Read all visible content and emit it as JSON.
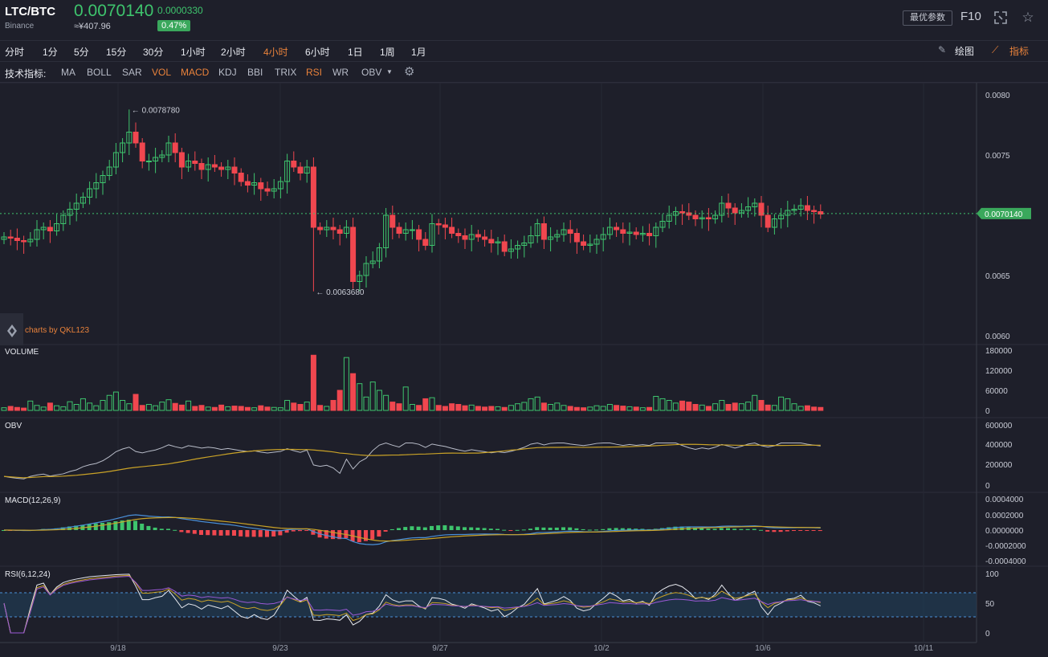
{
  "header": {
    "pair": "LTC/BTC",
    "exchange": "Binance",
    "price": "0.0070140",
    "cny_price": "≈¥407.96",
    "change": "0.0000330",
    "change_pct": "0.47%",
    "settings_label": "最优参数",
    "f10_label": "F10",
    "expand_icon": "expand-icon",
    "star_icon": "star-icon"
  },
  "timeframes": [
    "分时",
    "1分",
    "5分",
    "15分",
    "30分",
    "1小时",
    "2小时",
    "4小时",
    "6小时",
    "1日",
    "1周",
    "1月"
  ],
  "active_timeframe": "4小时",
  "tools": {
    "draw_label": "绘图",
    "indicator_label": "指标"
  },
  "indicators": {
    "label": "技术指标:",
    "items": [
      "MA",
      "BOLL",
      "SAR",
      "VOL",
      "MACD",
      "KDJ",
      "BBI",
      "TRIX",
      "RSI",
      "WR",
      "OBV"
    ],
    "active": [
      "VOL",
      "MACD",
      "RSI"
    ],
    "dropdown_arrow": "▼"
  },
  "watermark": "charts by QKL123",
  "panels": {
    "volume": "VOLUME",
    "obv": "OBV",
    "macd": "MACD(12,26,9)",
    "rsi": "RSI(6,12,24)"
  },
  "colors": {
    "up": "#3ec46d",
    "down": "#f0474f",
    "accent": "#e9823b",
    "bg": "#1e1f2a"
  },
  "chart_data": {
    "type": "candlestick",
    "interval": "4小时",
    "x_ticks": [
      "9/18",
      "9/23",
      "9/27",
      "10/2",
      "10/6",
      "10/11"
    ],
    "price_axis": [
      "0.0080",
      "0.0075",
      "0.0065",
      "0.0060"
    ],
    "ylim": [
      0.006,
      0.0081
    ],
    "last_price_label": "0.0070140",
    "high_label": "0.0078780",
    "low_label": "0.0063680",
    "volume_axis": [
      "180000",
      "120000",
      "60000",
      "0"
    ],
    "obv_axis": [
      "600000",
      "400000",
      "200000",
      "0"
    ],
    "macd_axis": [
      "0.0004000",
      "0.0002000",
      "0.0000000",
      "-0.0002000",
      "-0.0004000"
    ],
    "rsi_axis": [
      "100",
      "50",
      "0"
    ],
    "close": [
      0.00682,
      0.00681,
      0.00679,
      0.00678,
      0.0068,
      0.00688,
      0.0069,
      0.00687,
      0.00693,
      0.007,
      0.00705,
      0.0071,
      0.00715,
      0.00722,
      0.00727,
      0.00733,
      0.0074,
      0.00752,
      0.0076,
      0.00769,
      0.0076,
      0.00745,
      0.00745,
      0.00748,
      0.0075,
      0.0076,
      0.00752,
      0.0074,
      0.00745,
      0.00743,
      0.00738,
      0.00742,
      0.0074,
      0.00738,
      0.0074,
      0.00735,
      0.00728,
      0.00725,
      0.00727,
      0.00722,
      0.0072,
      0.00722,
      0.00728,
      0.00745,
      0.0074,
      0.00735,
      0.0074,
      0.0069,
      0.00688,
      0.0069,
      0.00688,
      0.00685,
      0.0069,
      0.00645,
      0.0065,
      0.0066,
      0.00662,
      0.00673,
      0.007,
      0.0069,
      0.00685,
      0.00688,
      0.00688,
      0.0068,
      0.00675,
      0.00693,
      0.00692,
      0.0069,
      0.00685,
      0.00683,
      0.0068,
      0.00684,
      0.00682,
      0.0068,
      0.00677,
      0.00678,
      0.0067,
      0.00672,
      0.00675,
      0.00677,
      0.00683,
      0.00693,
      0.0068,
      0.00682,
      0.00684,
      0.00688,
      0.00685,
      0.00678,
      0.00675,
      0.00676,
      0.0068,
      0.00684,
      0.0069,
      0.00688,
      0.00685,
      0.00686,
      0.00684,
      0.00685,
      0.00683,
      0.0069,
      0.00695,
      0.007,
      0.00703,
      0.00702,
      0.007,
      0.00697,
      0.00698,
      0.00697,
      0.007,
      0.0071,
      0.00706,
      0.00702,
      0.00704,
      0.00707,
      0.0071,
      0.007,
      0.0069,
      0.00697,
      0.007,
      0.00704,
      0.00705,
      0.00708,
      0.00704,
      0.00703,
      0.00701
    ],
    "volume": [
      8000,
      12000,
      9000,
      7000,
      28000,
      15000,
      10000,
      22000,
      14000,
      11000,
      26000,
      18000,
      35000,
      22000,
      14000,
      30000,
      45000,
      55000,
      30000,
      20000,
      48000,
      15000,
      18000,
      14000,
      25000,
      32000,
      21000,
      16000,
      28000,
      12000,
      15000,
      10000,
      9000,
      16000,
      11000,
      13000,
      12000,
      9000,
      8000,
      14000,
      10000,
      9000,
      8000,
      30000,
      22000,
      18000,
      25000,
      165000,
      15000,
      12000,
      30000,
      60000,
      158000,
      110000,
      80000,
      40000,
      85000,
      60000,
      45000,
      25000,
      20000,
      70000,
      18000,
      15000,
      35000,
      38000,
      15000,
      12000,
      20000,
      18000,
      14000,
      16000,
      12000,
      10000,
      12000,
      11000,
      9000,
      15000,
      20000,
      24000,
      35000,
      40000,
      22000,
      18000,
      22000,
      15000,
      12000,
      9000,
      8000,
      10000,
      14000,
      12000,
      18000,
      15000,
      13000,
      11000,
      10000,
      8000,
      9000,
      42000,
      35000,
      30000,
      22000,
      28000,
      25000,
      18000,
      16000,
      12000,
      20000,
      30000,
      18000,
      22000,
      20000,
      25000,
      45000,
      30000,
      16000,
      15000,
      40000,
      35000,
      20000,
      12000,
      14000,
      10000,
      9000
    ]
  }
}
